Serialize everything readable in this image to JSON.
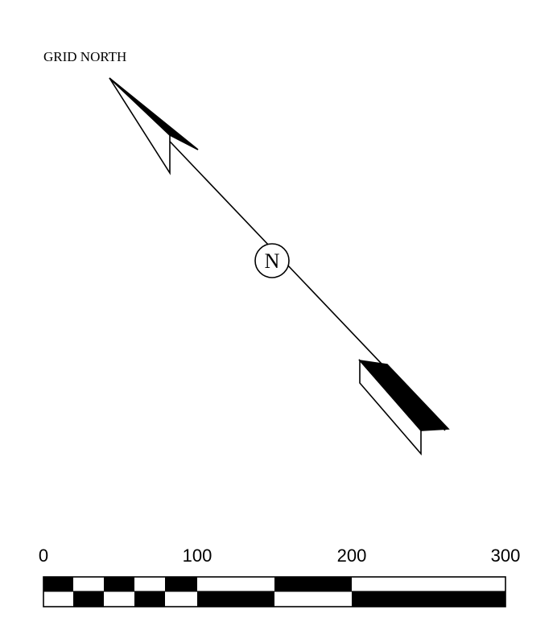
{
  "north_arrow": {
    "label": "GRID NORTH",
    "center_letter": "N"
  },
  "scale_bar": {
    "tick_labels": [
      "0",
      "100",
      "200",
      "300"
    ],
    "fill_color": "#000000",
    "background_color": "#ffffff"
  }
}
